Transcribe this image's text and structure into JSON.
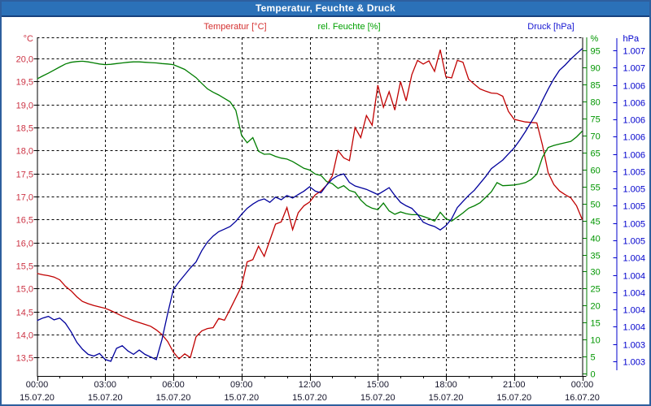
{
  "window": {
    "title": "Temperatur, Feuchte & Druck"
  },
  "legend": {
    "temperature": {
      "label": "Temperatur [°C]",
      "color": "#d43030"
    },
    "humidity": {
      "label": "rel. Feuchte [%]",
      "color": "#00a000"
    },
    "pressure": {
      "label": "Druck [hPa]",
      "color": "#1616d2"
    }
  },
  "colors": {
    "window_border": "#2e5f9e",
    "title_bar": "#2b71b8",
    "title_text": "#ffffff",
    "grid": "#000000",
    "x_label": "#14142a",
    "temp_tick_label": "#cc3344",
    "hum_tick_label": "#009600",
    "pres_tick_label": "#0000cd"
  },
  "chart_data": {
    "type": "line",
    "title": "Temperatur, Feuchte & Druck",
    "x_axis": {
      "start_hour": 0,
      "end_hour": 24,
      "step_hours": 0.25,
      "minor_tick_interval_hours": 1,
      "major_tick_interval_hours": 3,
      "major_ticks": [
        {
          "time": "00:00",
          "date": "15.07.20"
        },
        {
          "time": "03:00",
          "date": "15.07.20"
        },
        {
          "time": "06:00",
          "date": "15.07.20"
        },
        {
          "time": "09:00",
          "date": "15.07.20"
        },
        {
          "time": "12:00",
          "date": "15.07.20"
        },
        {
          "time": "15:00",
          "date": "15.07.20"
        },
        {
          "time": "18:00",
          "date": "15.07.20"
        },
        {
          "time": "21:00",
          "date": "15.07.20"
        },
        {
          "time": "00:00",
          "date": "16.07.20"
        }
      ]
    },
    "y_axes": {
      "temperature": {
        "unit": "°C",
        "side": "left",
        "min": 13.1,
        "max": 20.46,
        "tick_values": [
          20.0,
          19.5,
          19.0,
          18.5,
          18.0,
          17.5,
          17.0,
          16.5,
          16.0,
          15.5,
          15.0,
          14.5,
          14.0,
          13.5
        ],
        "tick_labels": [
          "20,0",
          "19,5",
          "19,0",
          "18,5",
          "18,0",
          "17,5",
          "17,0",
          "16,5",
          "16,0",
          "15,5",
          "15,0",
          "14,5",
          "14,0",
          "13,5"
        ]
      },
      "humidity": {
        "unit": "%",
        "side": "right_inner",
        "min": -0.6,
        "max": 98.7,
        "tick_values": [
          95,
          90,
          85,
          80,
          75,
          70,
          65,
          60,
          55,
          50,
          45,
          40,
          35,
          30,
          25,
          20,
          15,
          10,
          5,
          0
        ],
        "tick_labels": [
          "95",
          "90",
          "85",
          "80",
          "75",
          "70",
          "65",
          "60",
          "55",
          "50",
          "45",
          "40",
          "35",
          "30",
          "25",
          "20",
          "15",
          "10",
          "5",
          "0"
        ]
      },
      "pressure": {
        "unit": "hPa",
        "side": "right_outer",
        "min": 1003.03,
        "max": 1006.95,
        "tick_values": [
          1006.8,
          1006.6,
          1006.4,
          1006.2,
          1006.0,
          1005.8,
          1005.6,
          1005.4,
          1005.2,
          1005.0,
          1004.8,
          1004.6,
          1004.4,
          1004.2,
          1004.0,
          1003.8,
          1003.6,
          1003.4,
          1003.2
        ],
        "tick_labels": [
          "1.007",
          "1.007",
          "1.006",
          "1.006",
          "1.006",
          "1.006",
          "1.006",
          "1.005",
          "1.005",
          "1.005",
          "1.005",
          "1.005",
          "1.004",
          "1.004",
          "1.004",
          "1.004",
          "1.004",
          "1.003",
          "1.003"
        ]
      }
    },
    "series": [
      {
        "name": "Temperatur",
        "unit": "°C",
        "axis": "temperature",
        "color": "#c00000",
        "values": [
          15.33,
          15.3,
          15.28,
          15.25,
          15.19,
          15.05,
          14.95,
          14.82,
          14.72,
          14.67,
          14.63,
          14.6,
          14.57,
          14.52,
          14.46,
          14.4,
          14.35,
          14.3,
          14.26,
          14.22,
          14.18,
          14.1,
          14.0,
          13.85,
          13.62,
          13.47,
          13.58,
          13.5,
          13.95,
          14.08,
          14.13,
          14.15,
          14.35,
          14.31,
          14.55,
          14.8,
          15.05,
          15.58,
          15.63,
          15.92,
          15.7,
          16.05,
          16.4,
          16.45,
          16.76,
          16.28,
          16.65,
          16.8,
          16.88,
          17.04,
          17.12,
          17.25,
          17.45,
          18.0,
          17.84,
          17.78,
          18.5,
          18.28,
          18.76,
          18.55,
          19.42,
          18.94,
          19.28,
          18.88,
          19.5,
          19.08,
          19.65,
          19.96,
          19.88,
          19.95,
          19.72,
          20.19,
          19.6,
          19.58,
          19.96,
          19.92,
          19.55,
          19.44,
          19.34,
          19.29,
          19.25,
          19.24,
          19.18,
          18.85,
          18.68,
          18.65,
          18.62,
          18.61,
          18.6,
          18.12,
          17.52,
          17.26,
          17.12,
          17.04,
          16.97,
          16.8,
          16.5
        ]
      },
      {
        "name": "rel. Feuchte",
        "unit": "%",
        "axis": "humidity",
        "color": "#007d00",
        "values": [
          86.5,
          87.4,
          88.2,
          89.1,
          90.0,
          90.9,
          91.4,
          91.6,
          91.7,
          91.5,
          91.2,
          90.9,
          90.7,
          90.8,
          91.0,
          91.2,
          91.4,
          91.5,
          91.5,
          91.4,
          91.3,
          91.2,
          91.0,
          90.9,
          90.7,
          90.0,
          89.3,
          88.1,
          86.9,
          85.2,
          83.6,
          82.6,
          81.8,
          80.8,
          79.8,
          77.3,
          70.0,
          67.8,
          69.3,
          65.3,
          64.4,
          64.5,
          63.8,
          63.3,
          63.0,
          62.3,
          61.3,
          60.3,
          59.8,
          58.6,
          58.2,
          56.4,
          55.8,
          54.4,
          55.2,
          53.8,
          53.3,
          51.0,
          49.4,
          48.6,
          48.2,
          50.1,
          47.8,
          46.8,
          47.5,
          47.0,
          46.7,
          46.7,
          46.2,
          45.6,
          44.8,
          47.4,
          45.5,
          44.8,
          46.0,
          47.2,
          48.6,
          49.3,
          50.2,
          51.8,
          53.4,
          56.1,
          55.2,
          55.3,
          55.4,
          55.7,
          56.1,
          57.0,
          58.6,
          63.5,
          66.4,
          67.0,
          67.4,
          67.8,
          68.2,
          69.5,
          71.2
        ]
      },
      {
        "name": "Druck",
        "unit": "hPa",
        "axis": "pressure",
        "color": "#00009c",
        "values": [
          1003.67,
          1003.7,
          1003.72,
          1003.68,
          1003.7,
          1003.64,
          1003.54,
          1003.42,
          1003.34,
          1003.28,
          1003.26,
          1003.29,
          1003.22,
          1003.2,
          1003.35,
          1003.38,
          1003.32,
          1003.28,
          1003.33,
          1003.28,
          1003.25,
          1003.22,
          1003.45,
          1003.75,
          1004.03,
          1004.12,
          1004.2,
          1004.28,
          1004.35,
          1004.48,
          1004.58,
          1004.65,
          1004.7,
          1004.73,
          1004.76,
          1004.82,
          1004.9,
          1004.97,
          1005.02,
          1005.06,
          1005.08,
          1005.04,
          1005.1,
          1005.07,
          1005.12,
          1005.09,
          1005.13,
          1005.17,
          1005.22,
          1005.17,
          1005.15,
          1005.24,
          1005.31,
          1005.35,
          1005.37,
          1005.27,
          1005.23,
          1005.21,
          1005.19,
          1005.16,
          1005.13,
          1005.17,
          1005.21,
          1005.12,
          1005.04,
          1005.0,
          1004.97,
          1004.9,
          1004.81,
          1004.78,
          1004.76,
          1004.72,
          1004.77,
          1004.85,
          1004.98,
          1005.05,
          1005.12,
          1005.18,
          1005.26,
          1005.34,
          1005.43,
          1005.48,
          1005.53,
          1005.6,
          1005.67,
          1005.76,
          1005.86,
          1005.97,
          1006.08,
          1006.22,
          1006.35,
          1006.47,
          1006.57,
          1006.63,
          1006.7,
          1006.76,
          1006.82
        ]
      }
    ],
    "grid": {
      "horizontal": "dashed 0.5 °C steps",
      "vertical": "dashed 3 h steps"
    },
    "legend_position": "top"
  }
}
